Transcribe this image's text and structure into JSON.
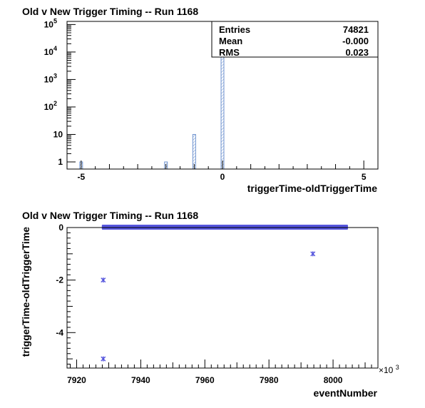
{
  "chart_data": [
    {
      "type": "bar",
      "title": "Old v New Trigger Timing -- Run 1168",
      "xlabel": "triggerTime-oldTriggerTime",
      "ylabel": "",
      "xlim": [
        -5.5,
        5.5
      ],
      "ylim": [
        0.55,
        130000
      ],
      "yscale": "log",
      "grid": false,
      "x_ticks": [
        -5,
        0,
        5
      ],
      "x_tick_labels": [
        "-5",
        "0",
        "5"
      ],
      "y_ticks": [
        1,
        10,
        100,
        1000,
        10000,
        100000
      ],
      "y_tick_labels": [
        {
          "base": "1",
          "exp": ""
        },
        {
          "base": "10",
          "exp": ""
        },
        {
          "base": "10",
          "exp": "2"
        },
        {
          "base": "10",
          "exp": "3"
        },
        {
          "base": "10",
          "exp": "4"
        },
        {
          "base": "10",
          "exp": "5"
        }
      ],
      "bar_width": 0.1,
      "bars": [
        {
          "x": -5.0,
          "value": 1
        },
        {
          "x": -2.0,
          "value": 1
        },
        {
          "x": -1.0,
          "value": 10
        },
        {
          "x": 0.0,
          "value": 74809
        }
      ],
      "color": "#6f93cf",
      "stats": {
        "placement": "top-right",
        "rows": [
          {
            "label": "Entries",
            "value": "74821"
          },
          {
            "label": "Mean",
            "value": "-0.000"
          },
          {
            "label": "RMS",
            "value": "0.023"
          }
        ]
      }
    },
    {
      "type": "scatter",
      "title": "Old v New Trigger Timing -- Run 1168",
      "xlabel": "eventNumber",
      "ylabel": "triggerTime-oldTriggerTime",
      "xlim": [
        7917,
        8014
      ],
      "ylim": [
        -5.35,
        0
      ],
      "x_ticks": [
        7920,
        7940,
        7960,
        7980,
        8000
      ],
      "x_tick_labels": [
        "7920",
        "7940",
        "7960",
        "7980",
        "8000"
      ],
      "x_multiplier": {
        "base": "×10",
        "exp": "3"
      },
      "y_ticks": [
        0,
        -2,
        -4
      ],
      "y_tick_labels": [
        "0",
        "-2",
        "-4"
      ],
      "grid": false,
      "color": "#5555dd",
      "band": {
        "x_start": 7928.3,
        "x_end": 8004.2,
        "y": 0
      },
      "points": [
        {
          "x": 7928.3,
          "y": -2
        },
        {
          "x": 7928.3,
          "y": -5
        },
        {
          "x": 7993.7,
          "y": -1
        }
      ]
    }
  ]
}
